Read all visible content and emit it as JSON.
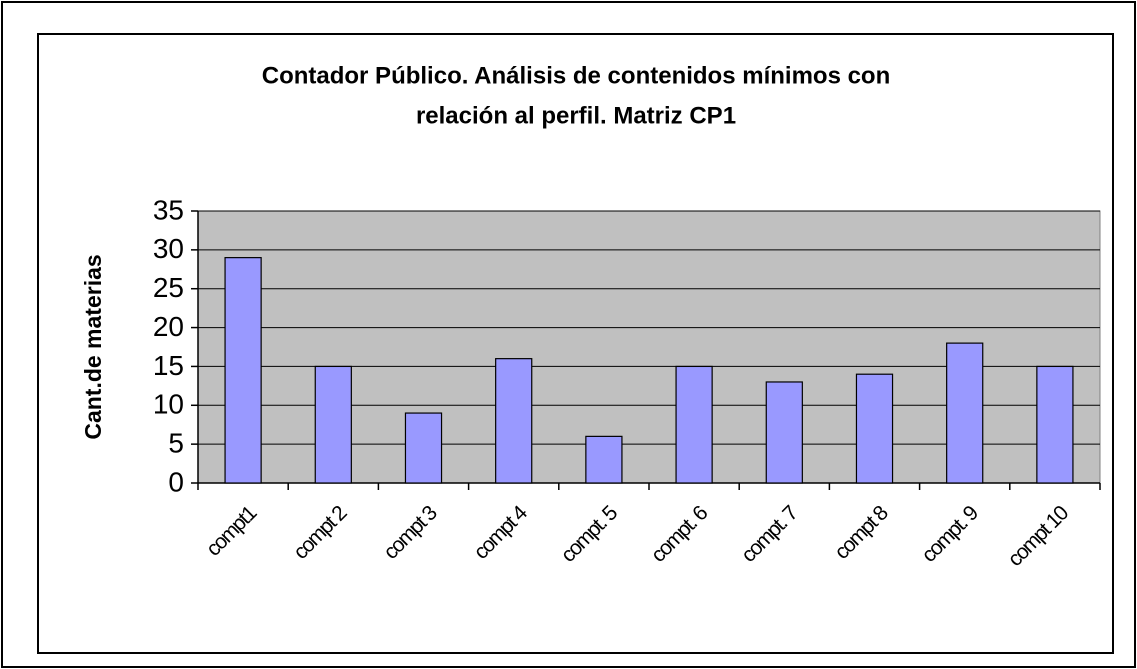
{
  "chart_data": {
    "type": "bar",
    "title": [
      "Contador Público. Análisis de contenidos mínimos con",
      "relación al perfil. Matriz CP1"
    ],
    "y_label": "Cant.de materias",
    "categories": [
      "compt1",
      "compt 2",
      "compt 3",
      "compt 4",
      "compt. 5",
      "compt. 6",
      "compt. 7",
      "compt 8",
      "compt. 9",
      "compt 10"
    ],
    "values": [
      29,
      15,
      9,
      16,
      6,
      15,
      13,
      14,
      18,
      15
    ],
    "color": "#9999ff",
    "ylim": [
      0,
      35
    ],
    "yticks": [
      0,
      5,
      10,
      15,
      20,
      25,
      30,
      35
    ],
    "grid": true
  }
}
